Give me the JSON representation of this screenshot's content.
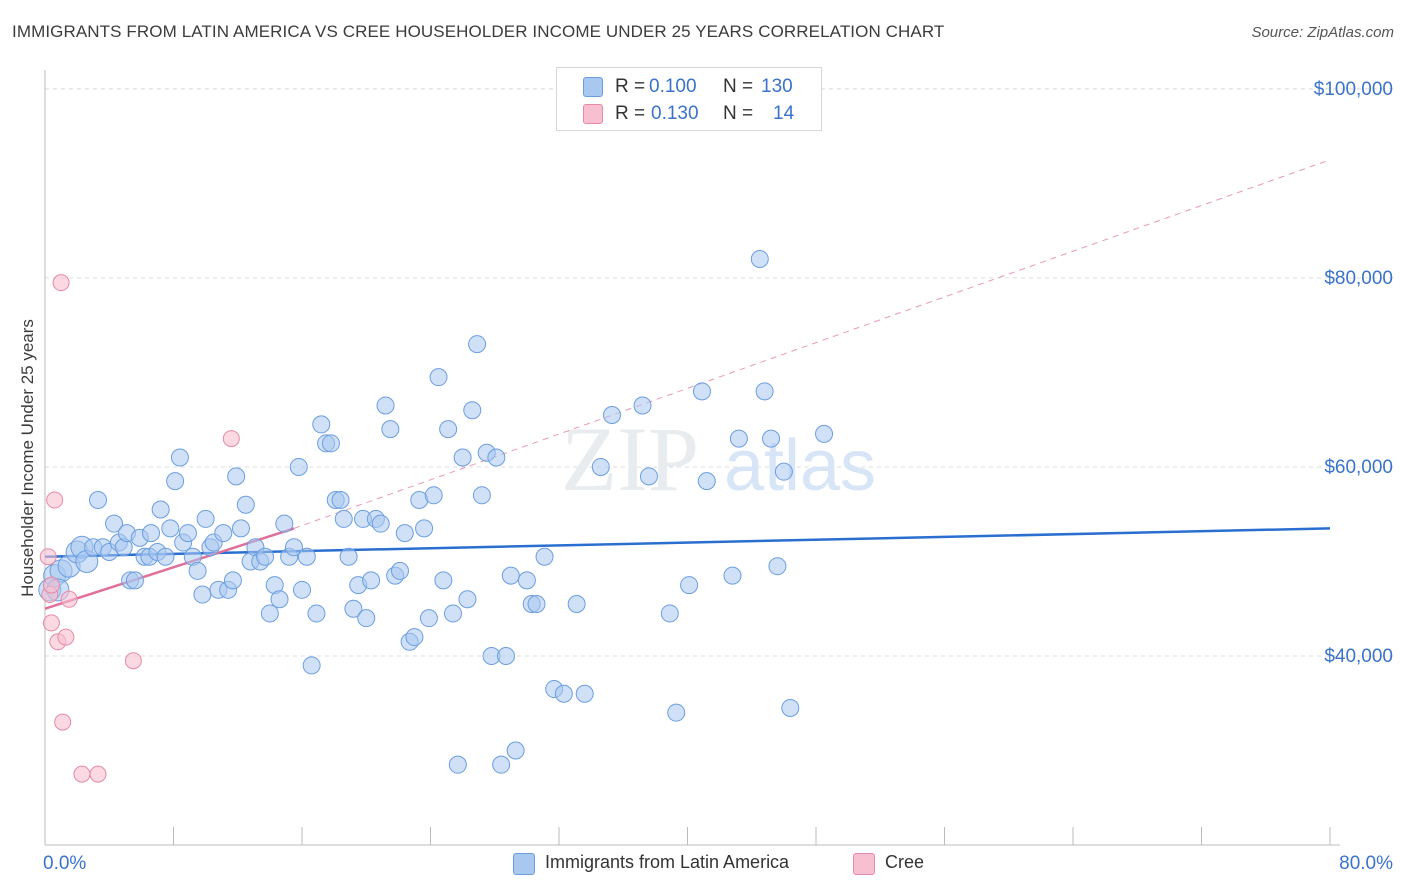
{
  "header": {
    "title": "IMMIGRANTS FROM LATIN AMERICA VS CREE HOUSEHOLDER INCOME UNDER 25 YEARS CORRELATION CHART",
    "source": "Source: ZipAtlas.com"
  },
  "legend": {
    "rows": [
      {
        "r_label": "R =",
        "r_value": "0.100",
        "n_label": "N =",
        "n_value": "130"
      },
      {
        "r_label": "R =",
        "r_value": "0.130",
        "n_label": "N =",
        "n_value": "14"
      }
    ]
  },
  "bottom_legend": {
    "items": [
      {
        "label": "Immigrants from Latin America"
      },
      {
        "label": "Cree"
      }
    ]
  },
  "watermark": {
    "zip": "ZIP",
    "atlas": "atlas"
  },
  "colors": {
    "blue_fill": "#a9c8f0",
    "blue_stroke": "#6b9ee0",
    "blue_line": "#2a6fd0",
    "pink_fill": "#f7bfd0",
    "pink_stroke": "#e68aa8",
    "pink_line": "#e0709a",
    "axis_text": "#3a73c9",
    "grid": "#dddddd"
  },
  "chart_data": {
    "type": "scatter",
    "title": "IMMIGRANTS FROM LATIN AMERICA VS CREE HOUSEHOLDER INCOME UNDER 25 YEARS CORRELATION CHART",
    "xlabel": "",
    "ylabel": "Householder Income Under 25 years",
    "xlim": [
      0,
      80
    ],
    "ylim": [
      20000,
      102000
    ],
    "x_tick_labels": [
      "0.0%",
      "80.0%"
    ],
    "y_ticks": [
      40000,
      60000,
      80000,
      100000
    ],
    "y_tick_labels": [
      "$40,000",
      "$60,000",
      "$80,000",
      "$100,000"
    ],
    "grid": true,
    "legend_position": "top-center",
    "series": [
      {
        "name": "Immigrants from Latin America",
        "r": 0.1,
        "n": 130,
        "trend": {
          "x0": 0,
          "y0": 50500,
          "x1": 80,
          "y1": 53500
        },
        "points": [
          [
            0.3,
            47000
          ],
          [
            0.6,
            48500
          ],
          [
            1.0,
            49000
          ],
          [
            1.5,
            49500
          ],
          [
            2.0,
            51000
          ],
          [
            2.3,
            51500
          ],
          [
            2.6,
            50000
          ],
          [
            3.0,
            51500
          ],
          [
            3.3,
            56500
          ],
          [
            3.6,
            51500
          ],
          [
            4.0,
            51000
          ],
          [
            4.3,
            54000
          ],
          [
            4.6,
            52000
          ],
          [
            4.9,
            51500
          ],
          [
            5.1,
            53000
          ],
          [
            5.3,
            48000
          ],
          [
            5.6,
            48000
          ],
          [
            5.9,
            52500
          ],
          [
            6.2,
            50500
          ],
          [
            6.5,
            50500
          ],
          [
            6.6,
            53000
          ],
          [
            7.0,
            51000
          ],
          [
            7.2,
            55500
          ],
          [
            7.5,
            50500
          ],
          [
            7.8,
            53500
          ],
          [
            8.1,
            58500
          ],
          [
            8.4,
            61000
          ],
          [
            8.6,
            52000
          ],
          [
            8.9,
            53000
          ],
          [
            9.2,
            50500
          ],
          [
            9.5,
            49000
          ],
          [
            9.8,
            46500
          ],
          [
            10.0,
            54500
          ],
          [
            10.3,
            51500
          ],
          [
            10.5,
            52000
          ],
          [
            10.8,
            47000
          ],
          [
            11.1,
            53000
          ],
          [
            11.4,
            47000
          ],
          [
            11.7,
            48000
          ],
          [
            11.9,
            59000
          ],
          [
            12.2,
            53500
          ],
          [
            12.5,
            56000
          ],
          [
            12.8,
            50000
          ],
          [
            13.1,
            51500
          ],
          [
            13.4,
            50000
          ],
          [
            13.7,
            50500
          ],
          [
            14.0,
            44500
          ],
          [
            14.3,
            47500
          ],
          [
            14.6,
            46000
          ],
          [
            14.9,
            54000
          ],
          [
            15.2,
            50500
          ],
          [
            15.5,
            51500
          ],
          [
            15.8,
            60000
          ],
          [
            16.0,
            47000
          ],
          [
            16.3,
            50500
          ],
          [
            16.6,
            39000
          ],
          [
            16.9,
            44500
          ],
          [
            17.2,
            64500
          ],
          [
            17.5,
            62500
          ],
          [
            17.8,
            62500
          ],
          [
            18.1,
            56500
          ],
          [
            18.4,
            56500
          ],
          [
            18.6,
            54500
          ],
          [
            18.9,
            50500
          ],
          [
            19.2,
            45000
          ],
          [
            19.5,
            47500
          ],
          [
            19.8,
            54500
          ],
          [
            20.0,
            44000
          ],
          [
            20.3,
            48000
          ],
          [
            20.6,
            54500
          ],
          [
            20.9,
            54000
          ],
          [
            21.2,
            66500
          ],
          [
            21.5,
            64000
          ],
          [
            21.8,
            48500
          ],
          [
            22.1,
            49000
          ],
          [
            22.4,
            53000
          ],
          [
            22.7,
            41500
          ],
          [
            23.0,
            42000
          ],
          [
            23.3,
            56500
          ],
          [
            23.6,
            53500
          ],
          [
            23.9,
            44000
          ],
          [
            24.2,
            57000
          ],
          [
            24.5,
            69500
          ],
          [
            24.8,
            48000
          ],
          [
            25.1,
            64000
          ],
          [
            25.4,
            44500
          ],
          [
            25.7,
            28500
          ],
          [
            26.0,
            61000
          ],
          [
            26.3,
            46000
          ],
          [
            26.6,
            66000
          ],
          [
            26.9,
            73000
          ],
          [
            27.2,
            57000
          ],
          [
            27.5,
            61500
          ],
          [
            27.8,
            40000
          ],
          [
            28.1,
            61000
          ],
          [
            28.4,
            28500
          ],
          [
            28.7,
            40000
          ],
          [
            29.0,
            48500
          ],
          [
            29.3,
            30000
          ],
          [
            30.0,
            48000
          ],
          [
            30.3,
            45500
          ],
          [
            30.6,
            45500
          ],
          [
            31.1,
            50500
          ],
          [
            31.7,
            36500
          ],
          [
            32.3,
            36000
          ],
          [
            33.1,
            45500
          ],
          [
            33.6,
            36000
          ],
          [
            34.6,
            60000
          ],
          [
            35.3,
            65500
          ],
          [
            37.2,
            66500
          ],
          [
            37.6,
            59000
          ],
          [
            38.9,
            44500
          ],
          [
            39.3,
            34000
          ],
          [
            40.1,
            47500
          ],
          [
            40.9,
            68000
          ],
          [
            41.2,
            58500
          ],
          [
            42.8,
            48500
          ],
          [
            43.2,
            63000
          ],
          [
            44.5,
            82000
          ],
          [
            44.8,
            68000
          ],
          [
            45.2,
            63000
          ],
          [
            45.6,
            49500
          ],
          [
            46.0,
            59500
          ],
          [
            46.4,
            34500
          ],
          [
            48.5,
            63500
          ],
          [
            0.8,
            47000
          ]
        ]
      },
      {
        "name": "Cree",
        "r": 0.13,
        "n": 14,
        "trend": {
          "x0": 0,
          "y0": 45000,
          "x1": 15.5,
          "y1": 53500
        },
        "trend_extension": {
          "x0": 15.5,
          "y0": 53500,
          "x1": 80,
          "y1": 92500
        },
        "points": [
          [
            0.2,
            50500
          ],
          [
            0.3,
            46500
          ],
          [
            0.4,
            43500
          ],
          [
            0.6,
            56500
          ],
          [
            0.8,
            41500
          ],
          [
            1.0,
            79500
          ],
          [
            1.1,
            33000
          ],
          [
            1.3,
            42000
          ],
          [
            1.5,
            46000
          ],
          [
            2.3,
            27500
          ],
          [
            3.3,
            27500
          ],
          [
            5.5,
            39500
          ],
          [
            11.6,
            63000
          ],
          [
            0.4,
            47500
          ]
        ]
      }
    ]
  }
}
